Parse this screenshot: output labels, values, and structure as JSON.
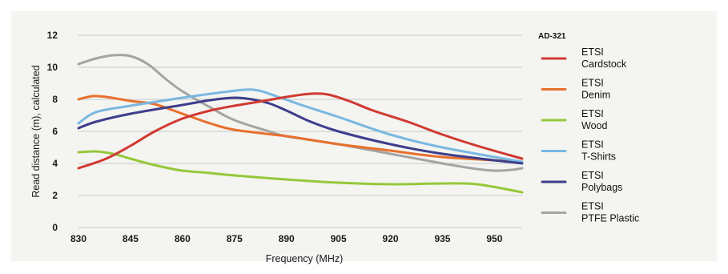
{
  "chart_data": {
    "type": "line",
    "title": "",
    "xlabel": "Frequency (MHz)",
    "ylabel": "Read distance (m), calculated",
    "xlim": [
      830,
      958
    ],
    "ylim": [
      0,
      12
    ],
    "xticks": [
      830,
      845,
      860,
      875,
      890,
      905,
      920,
      935,
      950
    ],
    "yticks": [
      0,
      2,
      4,
      6,
      8,
      10,
      12
    ],
    "grid": "horizontal",
    "legend_title": "AD-321",
    "legend_placement": "right",
    "series": [
      {
        "name": "ETSI\nCardstock",
        "color": "#d03a32",
        "x": [
          830,
          838,
          845,
          852,
          860,
          868,
          875,
          882,
          890,
          897,
          902,
          908,
          915,
          925,
          935,
          945,
          958
        ],
        "y": [
          3.7,
          4.3,
          5.1,
          6.0,
          6.8,
          7.3,
          7.6,
          7.85,
          8.15,
          8.35,
          8.3,
          7.9,
          7.3,
          6.6,
          5.8,
          5.1,
          4.3
        ]
      },
      {
        "name": "ETSI\nDenim",
        "color": "#e86f2c",
        "x": [
          830,
          834,
          838,
          845,
          852,
          860,
          868,
          875,
          890,
          905,
          920,
          935,
          958
        ],
        "y": [
          8.0,
          8.2,
          8.15,
          7.9,
          7.7,
          7.1,
          6.5,
          6.1,
          5.7,
          5.2,
          4.8,
          4.4,
          4.1
        ]
      },
      {
        "name": "ETSI\nWood",
        "color": "#96c83a",
        "x": [
          830,
          835,
          840,
          845,
          850,
          855,
          860,
          868,
          875,
          890,
          905,
          920,
          935,
          945,
          958
        ],
        "y": [
          4.7,
          4.75,
          4.6,
          4.3,
          4.0,
          3.75,
          3.55,
          3.4,
          3.25,
          3.0,
          2.8,
          2.7,
          2.75,
          2.7,
          2.2
        ]
      },
      {
        "name": "ETSI\nT-Shirts",
        "color": "#79b8e2",
        "x": [
          830,
          835,
          845,
          860,
          870,
          878,
          882,
          887,
          895,
          905,
          920,
          935,
          958
        ],
        "y": [
          6.5,
          7.2,
          7.6,
          8.1,
          8.4,
          8.6,
          8.55,
          8.2,
          7.6,
          6.9,
          5.8,
          5.0,
          4.1
        ]
      },
      {
        "name": "ETSI\nPolybags",
        "color": "#3e3d8c",
        "x": [
          830,
          835,
          845,
          860,
          868,
          875,
          880,
          885,
          890,
          897,
          905,
          920,
          935,
          958
        ],
        "y": [
          6.2,
          6.6,
          7.1,
          7.65,
          7.95,
          8.1,
          8.0,
          7.75,
          7.3,
          6.6,
          6.0,
          5.2,
          4.6,
          4.0
        ]
      },
      {
        "name": "ETSI\nPTFE Plastic",
        "color": "#a4a4a4",
        "x": [
          830,
          835,
          840,
          845,
          850,
          855,
          860,
          868,
          875,
          885,
          890,
          905,
          920,
          935,
          945,
          950,
          955,
          958
        ],
        "y": [
          10.2,
          10.55,
          10.75,
          10.7,
          10.2,
          9.3,
          8.5,
          7.5,
          6.7,
          6.0,
          5.7,
          5.2,
          4.6,
          4.0,
          3.65,
          3.55,
          3.6,
          3.7
        ]
      }
    ]
  }
}
